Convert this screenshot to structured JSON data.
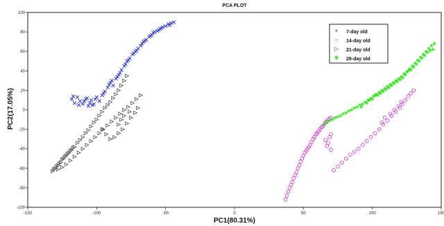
{
  "chart_data": {
    "type": "scatter",
    "title": "PCA PLOT",
    "xlabel": "PC1(80.31%)",
    "ylabel": "PC2(17.05%)",
    "xlim": [
      -150,
      150
    ],
    "ylim": [
      -100,
      100
    ],
    "xticks": [
      "-150",
      "-100",
      "-50",
      "0",
      "50",
      "100",
      "150"
    ],
    "yticks": [
      "100",
      "80",
      "60",
      "40",
      "20",
      "0",
      "-20",
      "-40",
      "-60",
      "-80",
      "-100"
    ],
    "grid": true,
    "legend_position": "top-right",
    "series": [
      {
        "name": "7-day old",
        "marker": "x",
        "color": "#1a2ad8",
        "points": [
          [
            -118,
            11
          ],
          [
            -116,
            7
          ],
          [
            -114,
            13
          ],
          [
            -112,
            9
          ],
          [
            -110,
            6
          ],
          [
            -108,
            11
          ],
          [
            -106,
            4
          ],
          [
            -104,
            10
          ],
          [
            -102,
            6
          ],
          [
            -100,
            13
          ],
          [
            -98,
            9
          ],
          [
            -96,
            15
          ],
          [
            -94,
            19
          ],
          [
            -92,
            23
          ],
          [
            -90,
            28
          ],
          [
            -88,
            25
          ],
          [
            -86,
            32
          ],
          [
            -84,
            36
          ],
          [
            -82,
            41
          ],
          [
            -80,
            45
          ],
          [
            -78,
            50
          ],
          [
            -76,
            53
          ],
          [
            -74,
            57
          ],
          [
            -72,
            60
          ],
          [
            -70,
            63
          ],
          [
            -68,
            66
          ],
          [
            -66,
            70
          ],
          [
            -64,
            72
          ],
          [
            -62,
            75
          ],
          [
            -60,
            77
          ],
          [
            -58,
            80
          ],
          [
            -56,
            81
          ],
          [
            -54,
            83
          ],
          [
            -52,
            85
          ],
          [
            -50,
            86
          ],
          [
            -48,
            88
          ],
          [
            -46,
            89
          ],
          [
            -44,
            90
          ],
          [
            -117,
            14
          ],
          [
            -113,
            5
          ],
          [
            -109,
            9
          ],
          [
            -105,
            7
          ],
          [
            -101,
            11
          ],
          [
            -89,
            30
          ],
          [
            -83,
            38
          ],
          [
            -77,
            51
          ],
          [
            -71,
            61
          ],
          [
            -65,
            71
          ],
          [
            -59,
            79
          ],
          [
            -53,
            84
          ],
          [
            -47,
            87
          ],
          [
            -107,
            12
          ],
          [
            -103,
            5
          ],
          [
            -95,
            17
          ],
          [
            -91,
            26
          ],
          [
            -85,
            34
          ],
          [
            -79,
            47
          ],
          [
            -73,
            58
          ],
          [
            -67,
            68
          ],
          [
            -61,
            76
          ],
          [
            -55,
            82
          ]
        ]
      },
      {
        "name": "14-day old",
        "marker": "o",
        "color": "#d12ad1",
        "points": [
          [
            37,
            -92
          ],
          [
            38,
            -88
          ],
          [
            39,
            -84
          ],
          [
            40,
            -80
          ],
          [
            41,
            -77
          ],
          [
            42,
            -74
          ],
          [
            43,
            -70
          ],
          [
            44,
            -67
          ],
          [
            45,
            -64
          ],
          [
            46,
            -60
          ],
          [
            47,
            -57
          ],
          [
            48,
            -53
          ],
          [
            49,
            -50
          ],
          [
            50,
            -47
          ],
          [
            51,
            -44
          ],
          [
            52,
            -42
          ],
          [
            53,
            -40
          ],
          [
            54,
            -38
          ],
          [
            55,
            -36
          ],
          [
            56,
            -33
          ],
          [
            57,
            -30
          ],
          [
            58,
            -28
          ],
          [
            59,
            -25
          ],
          [
            60,
            -24
          ],
          [
            61,
            -22
          ],
          [
            62,
            -20
          ],
          [
            63,
            -18
          ],
          [
            64,
            -17
          ],
          [
            65,
            -15
          ],
          [
            66,
            -13
          ],
          [
            67,
            -12
          ],
          [
            68,
            -10
          ],
          [
            69,
            -9
          ],
          [
            70,
            -8
          ],
          [
            67,
            -37
          ],
          [
            68,
            -34
          ],
          [
            66,
            -31
          ],
          [
            69,
            -28
          ],
          [
            70,
            -25
          ],
          [
            70,
            -41
          ],
          [
            72,
            -62
          ],
          [
            75,
            -58
          ],
          [
            78,
            -54
          ],
          [
            81,
            -50
          ],
          [
            84,
            -46
          ],
          [
            87,
            -43
          ],
          [
            90,
            -40
          ],
          [
            93,
            -36
          ],
          [
            96,
            -32
          ],
          [
            99,
            -28
          ],
          [
            102,
            -24
          ],
          [
            105,
            -20
          ],
          [
            108,
            -15
          ],
          [
            111,
            -11
          ],
          [
            114,
            -6
          ],
          [
            117,
            -2
          ],
          [
            120,
            2
          ],
          [
            122,
            6
          ],
          [
            124,
            10
          ],
          [
            126,
            14
          ],
          [
            128,
            17
          ],
          [
            130,
            20
          ],
          [
            107,
            -13
          ],
          [
            109,
            -8
          ],
          [
            113,
            -4
          ],
          [
            116,
            0
          ],
          [
            119,
            4
          ],
          [
            121,
            8
          ]
        ]
      },
      {
        "name": "21-day old",
        "marker": "triangle",
        "color": "#333333",
        "points": [
          [
            -132,
            -63
          ],
          [
            -130,
            -60
          ],
          [
            -128,
            -57
          ],
          [
            -126,
            -54
          ],
          [
            -124,
            -50
          ],
          [
            -122,
            -47
          ],
          [
            -120,
            -44
          ],
          [
            -118,
            -41
          ],
          [
            -116,
            -38
          ],
          [
            -114,
            -34
          ],
          [
            -112,
            -31
          ],
          [
            -110,
            -28
          ],
          [
            -108,
            -24
          ],
          [
            -106,
            -21
          ],
          [
            -104,
            -17
          ],
          [
            -102,
            -13
          ],
          [
            -100,
            -10
          ],
          [
            -98,
            -6
          ],
          [
            -96,
            -2
          ],
          [
            -94,
            2
          ],
          [
            -92,
            5
          ],
          [
            -90,
            8
          ],
          [
            -88,
            12
          ],
          [
            -86,
            16
          ],
          [
            -84,
            20
          ],
          [
            -82,
            25
          ],
          [
            -80,
            30
          ],
          [
            -78,
            35
          ],
          [
            -131,
            -61
          ],
          [
            -129,
            -58
          ],
          [
            -127,
            -55
          ],
          [
            -125,
            -51
          ],
          [
            -123,
            -48
          ],
          [
            -121,
            -45
          ],
          [
            -119,
            -42
          ],
          [
            -117,
            -39
          ],
          [
            -128,
            -61
          ],
          [
            -125,
            -59
          ],
          [
            -122,
            -56
          ],
          [
            -119,
            -52
          ],
          [
            -116,
            -48
          ],
          [
            -113,
            -44
          ],
          [
            -110,
            -40
          ],
          [
            -107,
            -36
          ],
          [
            -104,
            -32
          ],
          [
            -101,
            -28
          ],
          [
            -98,
            -24
          ],
          [
            -95,
            -20
          ],
          [
            -92,
            -16
          ],
          [
            -89,
            -12
          ],
          [
            -86,
            -8
          ],
          [
            -83,
            -4
          ],
          [
            -80,
            0
          ],
          [
            -77,
            3
          ],
          [
            -74,
            7
          ],
          [
            -71,
            11
          ],
          [
            -68,
            15
          ],
          [
            -96,
            -20
          ],
          [
            -93,
            -25
          ],
          [
            -90,
            -30
          ],
          [
            -87,
            -28
          ],
          [
            -84,
            -24
          ],
          [
            -81,
            -20
          ],
          [
            -78,
            -14
          ],
          [
            -75,
            -8
          ],
          [
            -72,
            -3
          ],
          [
            -70,
            2
          ],
          [
            -84,
            -15
          ],
          [
            -82,
            -10
          ],
          [
            -80,
            -6
          ],
          [
            -76,
            -2
          ]
        ]
      },
      {
        "name": "28-day old",
        "marker": "star",
        "color": "#33e31f",
        "points": [
          [
            65,
            -15
          ],
          [
            67,
            -13
          ],
          [
            69,
            -11
          ],
          [
            71,
            -10
          ],
          [
            73,
            -8
          ],
          [
            75,
            -7
          ],
          [
            77,
            -6
          ],
          [
            79,
            -4
          ],
          [
            81,
            -3
          ],
          [
            83,
            -1
          ],
          [
            85,
            0
          ],
          [
            87,
            2
          ],
          [
            89,
            3
          ],
          [
            91,
            5
          ],
          [
            93,
            6
          ],
          [
            95,
            8
          ],
          [
            97,
            10
          ],
          [
            99,
            12
          ],
          [
            101,
            14
          ],
          [
            103,
            16
          ],
          [
            105,
            18
          ],
          [
            107,
            20
          ],
          [
            109,
            22
          ],
          [
            111,
            24
          ],
          [
            113,
            26
          ],
          [
            115,
            28
          ],
          [
            117,
            30
          ],
          [
            119,
            32
          ],
          [
            121,
            34
          ],
          [
            123,
            37
          ],
          [
            125,
            39
          ],
          [
            127,
            42
          ],
          [
            129,
            45
          ],
          [
            131,
            48
          ],
          [
            133,
            51
          ],
          [
            135,
            54
          ],
          [
            137,
            57
          ],
          [
            139,
            60
          ],
          [
            141,
            63
          ],
          [
            143,
            66
          ],
          [
            145,
            68
          ],
          [
            92,
            3
          ],
          [
            96,
            7
          ],
          [
            100,
            11
          ],
          [
            104,
            15
          ],
          [
            108,
            19
          ],
          [
            112,
            23
          ],
          [
            116,
            27
          ],
          [
            120,
            31
          ],
          [
            124,
            36
          ],
          [
            128,
            41
          ],
          [
            132,
            47
          ],
          [
            136,
            53
          ],
          [
            140,
            59
          ],
          [
            144,
            62
          ],
          [
            98,
            10
          ],
          [
            102,
            15
          ],
          [
            106,
            17
          ],
          [
            110,
            21
          ],
          [
            114,
            25
          ],
          [
            118,
            29
          ],
          [
            122,
            33
          ],
          [
            126,
            40
          ],
          [
            130,
            44
          ],
          [
            134,
            50
          ],
          [
            138,
            56
          ],
          [
            142,
            61
          ]
        ]
      }
    ]
  }
}
